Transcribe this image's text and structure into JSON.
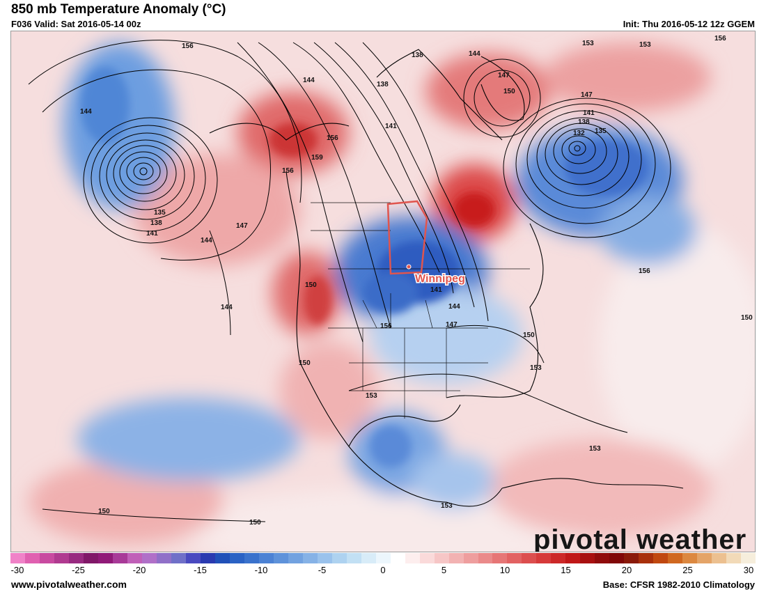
{
  "header": {
    "title": "850 mb Temperature Anomaly (°C)",
    "valid": "F036 Valid: Sat 2016-05-14 00z",
    "init": "Init: Thu 2016-05-12 12z GGEM"
  },
  "map": {
    "highlighted_region": "Manitoba",
    "city_label": "Winnipeg",
    "brand": "pivotal weather",
    "contour_labels": [
      "156",
      "138",
      "144",
      "153",
      "153",
      "156",
      "144",
      "138",
      "141",
      "156",
      "159",
      "147",
      "150",
      "147",
      "141",
      "138",
      "132",
      "135",
      "144",
      "135",
      "138",
      "141",
      "147",
      "144",
      "156",
      "150",
      "144",
      "141",
      "144",
      "147",
      "150",
      "156",
      "150",
      "153",
      "153",
      "153",
      "153",
      "150",
      "150",
      "156",
      "150"
    ]
  },
  "legend": {
    "colors": [
      "#f082c8",
      "#e060b0",
      "#c84aa0",
      "#b03a90",
      "#982a80",
      "#801868",
      "#901a78",
      "#a83a98",
      "#c060b8",
      "#b070c8",
      "#9070c8",
      "#7070c8",
      "#4a4ac0",
      "#2a3ab0",
      "#2050b8",
      "#2a62c4",
      "#3a72cc",
      "#4c82d4",
      "#5e92da",
      "#72a2e0",
      "#86b2e6",
      "#9ac2ec",
      "#aed2f0",
      "#c2e0f4",
      "#d8ecf8",
      "#ecf6fc",
      "#ffffff",
      "#fdeeee",
      "#fadada",
      "#f6c6c6",
      "#f2b2b2",
      "#ee9e9e",
      "#ea8a8a",
      "#e67676",
      "#e26262",
      "#dc4e4e",
      "#d63a3a",
      "#cc2828",
      "#c01818",
      "#a81010",
      "#900c0c",
      "#800808",
      "#8a1a0a",
      "#a8300c",
      "#c04810",
      "#d06820",
      "#dc8840",
      "#e4a468",
      "#ecc090",
      "#f2dab8",
      "#f6eedc"
    ],
    "ticks": [
      "-30",
      "-25",
      "-20",
      "-15",
      "-10",
      "-5",
      "0",
      "5",
      "10",
      "15",
      "20",
      "25",
      "30"
    ]
  },
  "footer": {
    "website": "www.pivotalweather.com",
    "base": "Base: CFSR 1982-2010 Climatology"
  }
}
